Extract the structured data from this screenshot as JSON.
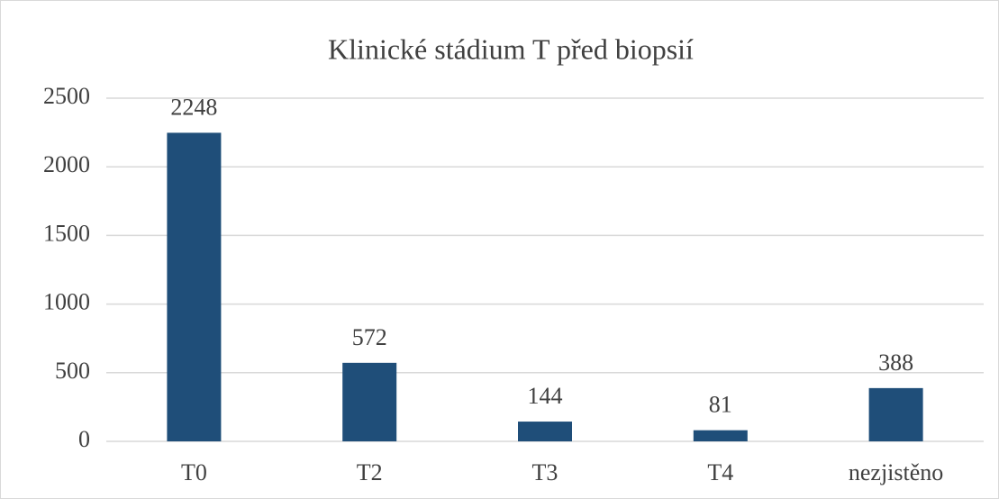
{
  "chart_data": {
    "type": "bar",
    "title": "Klinické stádium T před biopsií",
    "categories": [
      "T0",
      "T2",
      "T3",
      "T4",
      "nezjistěno"
    ],
    "values": [
      2248,
      572,
      144,
      81,
      388
    ],
    "color": "#1f4e79",
    "ylim": [
      0,
      2500
    ],
    "yticks": [
      0,
      500,
      1000,
      1500,
      2000,
      2500
    ],
    "grid": true
  }
}
